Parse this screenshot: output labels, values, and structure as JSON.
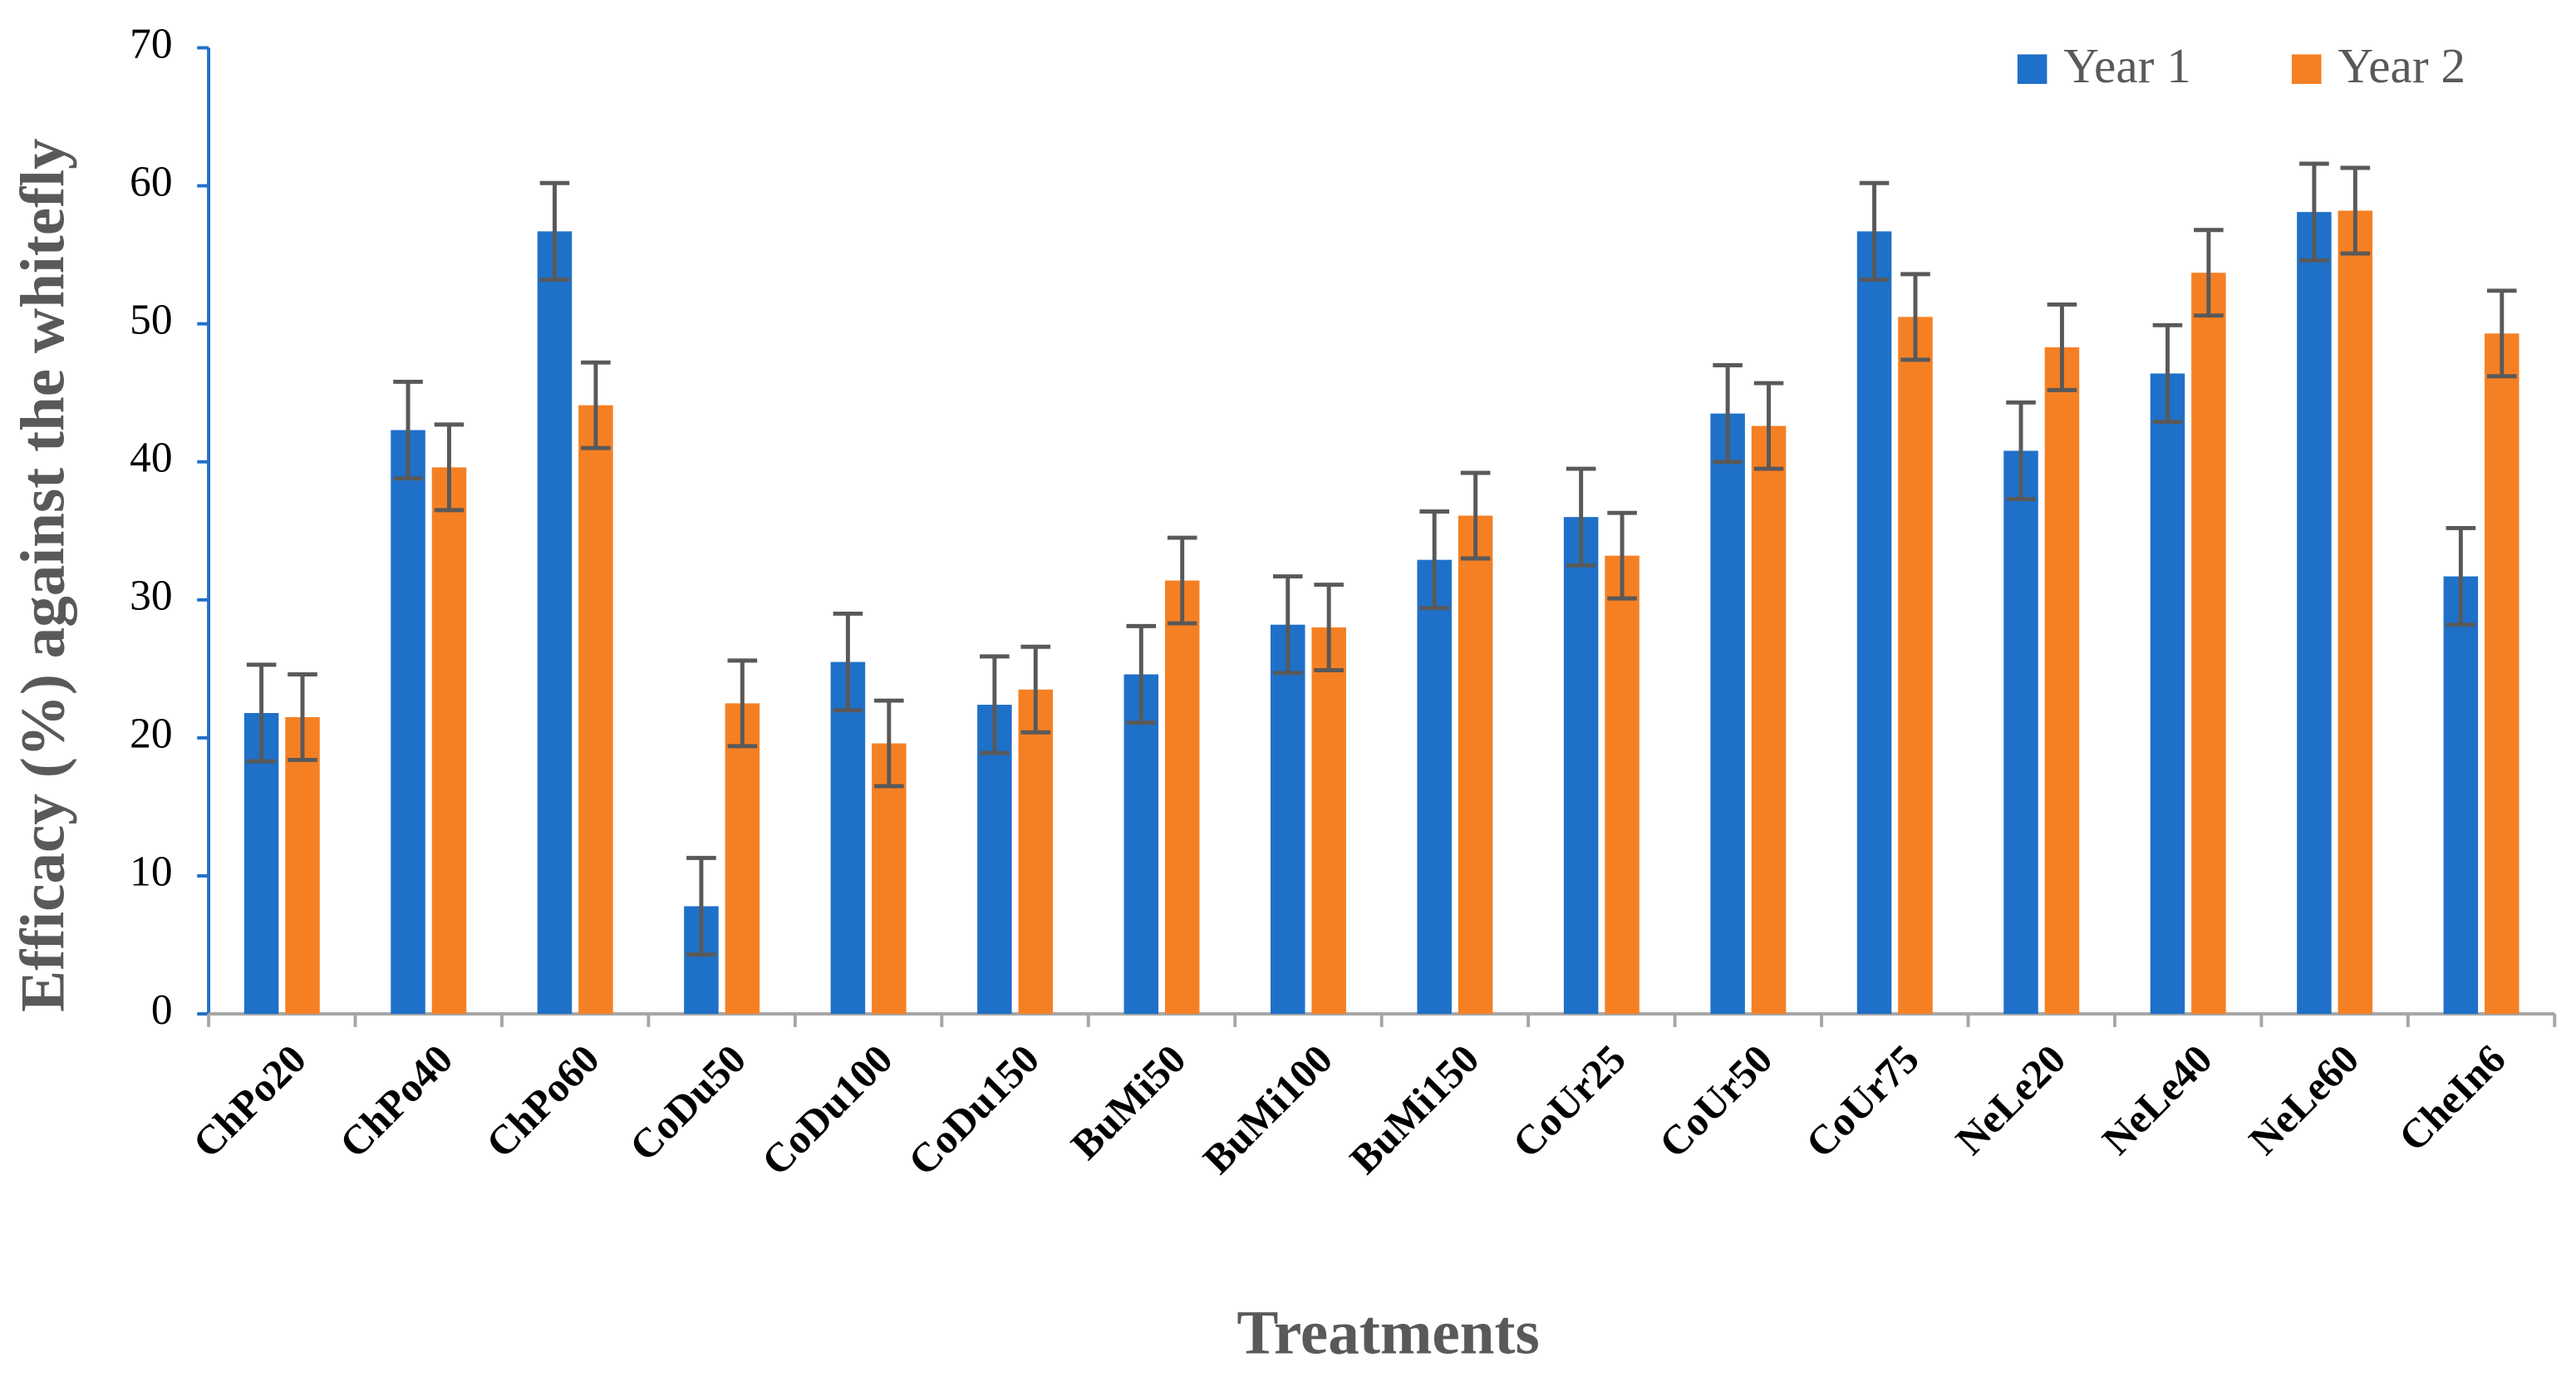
{
  "chart_data": {
    "type": "bar",
    "x_label": "Treatments",
    "y_label": "Efficacy (%) against the whitefly",
    "categories": [
      "ChPo20",
      "ChPo40",
      "ChPo60",
      "CoDu50",
      "CoDu100",
      "CoDu150",
      "BuMi50",
      "BuMi100",
      "BuMi150",
      "CoUr25",
      "CoUr50",
      "CoUr75",
      "NeLe20",
      "NeLe40",
      "NeLe60",
      "CheIn6"
    ],
    "series": [
      {
        "name": "Year 1",
        "color": "#1f70c8",
        "values": [
          21.8,
          42.3,
          56.7,
          7.8,
          25.5,
          22.4,
          24.6,
          28.2,
          32.9,
          36.0,
          43.5,
          56.7,
          40.8,
          46.4,
          58.1,
          31.7
        ],
        "errors": [
          3.5,
          3.5,
          3.5,
          3.5,
          3.5,
          3.5,
          3.5,
          3.5,
          3.5,
          3.5,
          3.5,
          3.5,
          3.5,
          3.5,
          3.5,
          3.5
        ]
      },
      {
        "name": "Year 2",
        "color": "#f58024",
        "values": [
          21.5,
          39.6,
          44.1,
          22.5,
          19.6,
          23.5,
          31.4,
          28.0,
          36.1,
          33.2,
          42.6,
          50.5,
          48.3,
          53.7,
          58.2,
          49.3
        ],
        "errors": [
          3.1,
          3.1,
          3.1,
          3.1,
          3.1,
          3.1,
          3.1,
          3.1,
          3.1,
          3.1,
          3.1,
          3.1,
          3.1,
          3.1,
          3.1,
          3.1
        ]
      }
    ],
    "ylim": [
      0,
      70
    ],
    "yticks": [
      0,
      10,
      20,
      30,
      40,
      50,
      60,
      70
    ],
    "grid": false,
    "legend": "top-right"
  }
}
